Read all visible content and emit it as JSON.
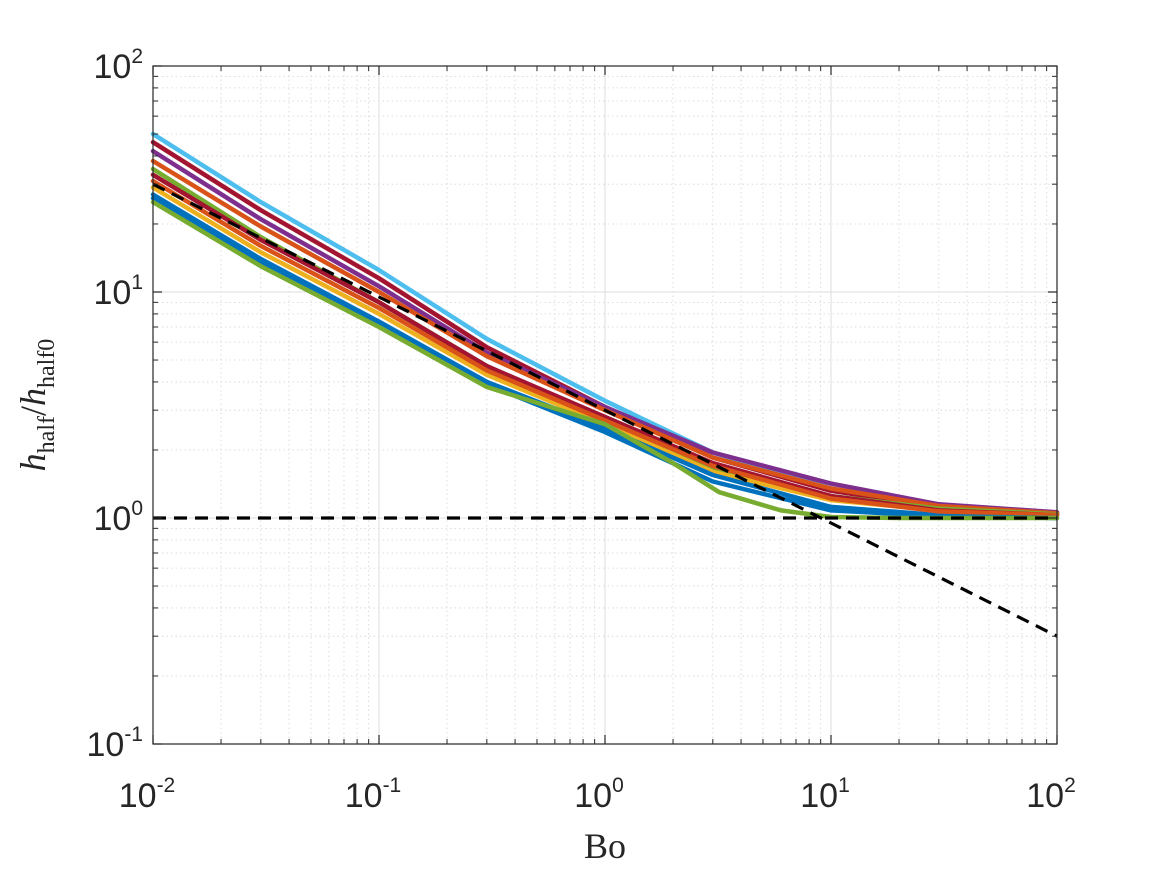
{
  "chart_data": {
    "type": "line",
    "title": "",
    "xlabel": "Bo",
    "ylabel": {
      "main": "h",
      "sub1": "half",
      "mid": "/",
      "main2": "h",
      "sub2": "half0"
    },
    "xscale": "log",
    "yscale": "log",
    "xlim": [
      0.01,
      100
    ],
    "ylim": [
      0.1,
      100
    ],
    "grid": true,
    "minor_grid": true,
    "legend": "none",
    "x_ticks": [
      {
        "base": "10",
        "exp": "-2"
      },
      {
        "base": "10",
        "exp": "-1"
      },
      {
        "base": "10",
        "exp": "0"
      },
      {
        "base": "10",
        "exp": "1"
      },
      {
        "base": "10",
        "exp": "2"
      }
    ],
    "y_ticks": [
      {
        "base": "10",
        "exp": "-1"
      },
      {
        "base": "10",
        "exp": "0"
      },
      {
        "base": "10",
        "exp": "1"
      },
      {
        "base": "10",
        "exp": "2"
      }
    ],
    "x_tick_values": [
      0.01,
      0.1,
      1,
      10,
      100
    ],
    "y_tick_values": [
      0.1,
      1,
      10,
      100
    ],
    "reference_lines": [
      {
        "name": "",
        "style": "dashed",
        "color": "#000000",
        "x": [
          0.01,
          100
        ],
        "y": [
          1.0,
          1.0
        ]
      },
      {
        "name": "",
        "style": "dashed",
        "color": "#000000",
        "x": [
          0.01,
          0.1,
          1,
          10,
          100
        ],
        "y": [
          30,
          9.5,
          3.0,
          0.95,
          0.3
        ]
      }
    ],
    "series": [
      {
        "color": "#4DBEEE",
        "x": [
          0.01,
          0.03,
          0.1,
          0.3,
          1,
          3,
          10,
          30,
          100
        ],
        "y": [
          50,
          25,
          12.5,
          6.2,
          3.3,
          1.95,
          1.35,
          1.13,
          1.05
        ]
      },
      {
        "color": "#A2142F",
        "x": [
          0.01,
          0.03,
          0.1,
          0.3,
          1,
          3,
          10,
          30,
          100
        ],
        "y": [
          46,
          23,
          11.5,
          5.7,
          3.1,
          1.85,
          1.32,
          1.12,
          1.05
        ]
      },
      {
        "color": "#7E2F8E",
        "x": [
          0.01,
          0.03,
          0.1,
          0.3,
          1,
          3,
          10,
          30,
          100
        ],
        "y": [
          42,
          21,
          10.6,
          5.4,
          3.1,
          1.95,
          1.42,
          1.15,
          1.06
        ]
      },
      {
        "color": "#D95319",
        "x": [
          0.01,
          0.03,
          0.1,
          0.3,
          1,
          3,
          10,
          30,
          100
        ],
        "y": [
          38,
          19.5,
          10,
          5.2,
          3.0,
          1.85,
          1.35,
          1.13,
          1.05
        ]
      },
      {
        "color": "#77AC30",
        "x": [
          0.01,
          0.03,
          0.1,
          0.3,
          1,
          3,
          10,
          30,
          100
        ],
        "y": [
          35,
          17.5,
          9,
          4.7,
          2.7,
          1.65,
          1.25,
          1.1,
          1.04
        ]
      },
      {
        "color": "#EDB120",
        "x": [
          0.01,
          0.03,
          0.1,
          0.3,
          1,
          3,
          10,
          30,
          100
        ],
        "y": [
          29,
          15,
          8,
          4.3,
          2.6,
          1.6,
          1.2,
          1.08,
          1.03
        ]
      },
      {
        "color": "#0072BD",
        "x": [
          0.01,
          0.03,
          0.1,
          0.3,
          1,
          3,
          10,
          30,
          100
        ],
        "y": [
          27,
          14,
          7.4,
          4.0,
          2.5,
          1.55,
          1.12,
          1.03,
          1.0
        ]
      },
      {
        "color": "#A2142F",
        "x": [
          0.01,
          0.03,
          0.1,
          0.3,
          1,
          3,
          10,
          30,
          100
        ],
        "y": [
          33,
          17,
          9,
          4.7,
          2.8,
          1.75,
          1.25,
          1.08,
          1.03
        ]
      },
      {
        "color": "#D95319",
        "x": [
          0.01,
          0.03,
          0.1,
          0.3,
          1,
          3,
          10,
          30,
          100
        ],
        "y": [
          31,
          16,
          8.5,
          4.5,
          2.7,
          1.7,
          1.22,
          1.07,
          1.03
        ]
      },
      {
        "color": "#0072BD",
        "x": [
          0.01,
          0.03,
          0.1,
          0.3,
          1,
          3,
          10,
          30,
          100
        ],
        "y": [
          26,
          13.5,
          7.2,
          3.9,
          2.4,
          1.45,
          1.08,
          1.02,
          1.0
        ]
      },
      {
        "color": "#77AC30",
        "x": [
          0.01,
          0.03,
          0.1,
          0.3,
          1,
          2,
          3.2,
          6,
          10,
          20,
          100
        ],
        "y": [
          25,
          13,
          7,
          3.8,
          2.6,
          1.75,
          1.3,
          1.08,
          1.01,
          1.0,
          1.0
        ]
      }
    ]
  }
}
